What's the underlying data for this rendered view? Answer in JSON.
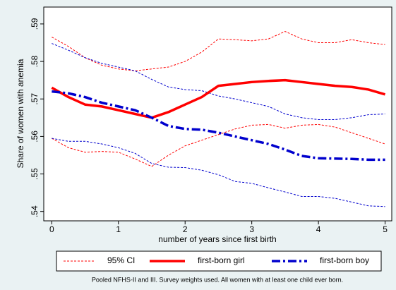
{
  "chart_data": {
    "type": "line",
    "y_label": "Share of women with anemia",
    "x_label": "number of years since first birth",
    "note": "Pooled NFHS-II and III. Survey weights used. All women with at least one child ever born.",
    "ci_label": "95% CI",
    "ci_color": "#ff0000",
    "x": [
      0,
      0.25,
      0.5,
      0.75,
      1,
      1.25,
      1.5,
      1.75,
      2,
      2.25,
      2.5,
      2.75,
      3,
      3.25,
      3.5,
      3.75,
      4,
      4.25,
      4.5,
      4.75,
      5
    ],
    "series": [
      {
        "name": "first-born girl",
        "color": "#ff0000",
        "values": [
          0.573,
          0.5705,
          0.5685,
          0.568,
          0.567,
          0.566,
          0.565,
          0.5665,
          0.5685,
          0.5705,
          0.5735,
          0.574,
          0.5745,
          0.5748,
          0.575,
          0.5745,
          0.574,
          0.5735,
          0.5732,
          0.5725,
          0.5712
        ],
        "ci_upper": [
          0.5865,
          0.584,
          0.581,
          0.579,
          0.578,
          0.5775,
          0.578,
          0.5785,
          0.58,
          0.5825,
          0.586,
          0.5858,
          0.5855,
          0.586,
          0.588,
          0.586,
          0.585,
          0.585,
          0.5858,
          0.585,
          0.5845
        ],
        "ci_lower": [
          0.5595,
          0.557,
          0.5558,
          0.556,
          0.5558,
          0.554,
          0.552,
          0.555,
          0.5575,
          0.559,
          0.5605,
          0.562,
          0.563,
          0.5632,
          0.5622,
          0.563,
          0.5632,
          0.5625,
          0.561,
          0.5595,
          0.558
        ]
      },
      {
        "name": "first-born boy",
        "color": "#0000cd",
        "values": [
          0.572,
          0.5715,
          0.5705,
          0.569,
          0.568,
          0.567,
          0.565,
          0.5628,
          0.562,
          0.5618,
          0.561,
          0.56,
          0.559,
          0.558,
          0.5565,
          0.5548,
          0.5542,
          0.5541,
          0.554,
          0.5538,
          0.5538
        ],
        "ci_upper": [
          0.5848,
          0.583,
          0.581,
          0.5795,
          0.5785,
          0.5775,
          0.5752,
          0.5732,
          0.5725,
          0.5722,
          0.5708,
          0.57,
          0.569,
          0.568,
          0.566,
          0.565,
          0.5645,
          0.5645,
          0.565,
          0.5658,
          0.566
        ],
        "ci_lower": [
          0.5595,
          0.5587,
          0.5587,
          0.558,
          0.557,
          0.5555,
          0.5528,
          0.5518,
          0.5517,
          0.551,
          0.5498,
          0.548,
          0.5475,
          0.5463,
          0.5452,
          0.544,
          0.544,
          0.5435,
          0.5425,
          0.5415,
          0.5413
        ]
      }
    ],
    "xlim": [
      -0.12,
      5.1
    ],
    "xticks": [
      0,
      1,
      2,
      3,
      4,
      5
    ],
    "ylim": [
      0.5375,
      0.5945
    ],
    "yticks": [
      {
        "value": 0.54,
        "label": ".54"
      },
      {
        "value": 0.55,
        "label": ".55"
      },
      {
        "value": 0.56,
        "label": ".56"
      },
      {
        "value": 0.57,
        "label": ".57"
      },
      {
        "value": 0.58,
        "label": ".58"
      },
      {
        "value": 0.59,
        "label": ".59"
      }
    ]
  }
}
